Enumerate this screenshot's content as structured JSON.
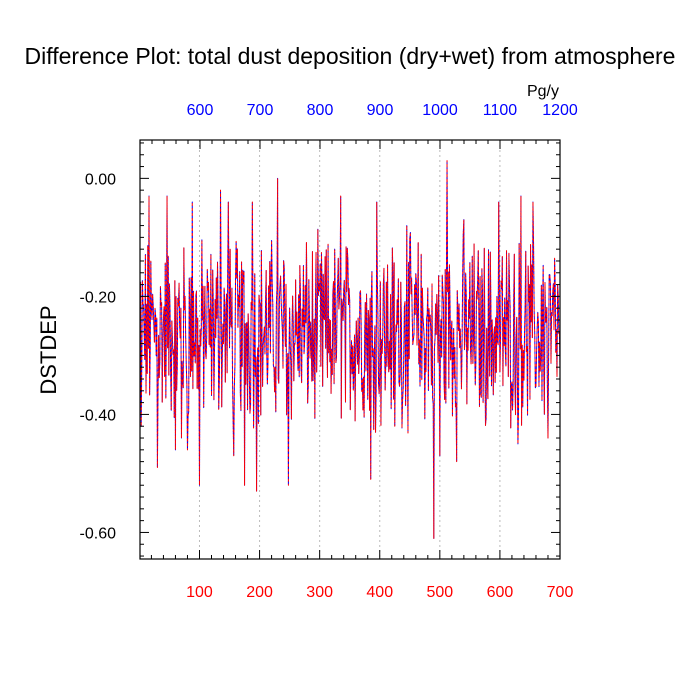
{
  "chart_data": {
    "type": "line",
    "title": "Difference Plot: total dust deposition (dry+wet) from atmosphere",
    "ylabel": "DSTDEP",
    "top_axis_unit": "Pg/y",
    "xlim": [
      1,
      700
    ],
    "ylim": [
      -0.645,
      0.065
    ],
    "top_xlim": [
      500,
      1200
    ],
    "bottom_ticks": [
      {
        "value": 100,
        "label": "100"
      },
      {
        "value": 200,
        "label": "200"
      },
      {
        "value": 300,
        "label": "300"
      },
      {
        "value": 400,
        "label": "400"
      },
      {
        "value": 500,
        "label": "500"
      },
      {
        "value": 600,
        "label": "600"
      },
      {
        "value": 700,
        "label": "700"
      }
    ],
    "top_ticks": [
      {
        "value": 600,
        "label": "600"
      },
      {
        "value": 700,
        "label": "700"
      },
      {
        "value": 800,
        "label": "800"
      },
      {
        "value": 900,
        "label": "900"
      },
      {
        "value": 1000,
        "label": "1000"
      },
      {
        "value": 1100,
        "label": "1100"
      },
      {
        "value": 1200,
        "label": "1200"
      }
    ],
    "y_ticks": [
      {
        "value": 0.0,
        "label": "0.00"
      },
      {
        "value": -0.2,
        "label": "-0.20"
      },
      {
        "value": -0.4,
        "label": "-0.40"
      },
      {
        "value": -0.6,
        "label": "-0.60"
      }
    ],
    "grid": "vertical dotted at major ticks",
    "series": [
      {
        "name": "DSTDEP difference",
        "style": "dashed",
        "colors": [
          "#0000ff",
          "#ff0000"
        ],
        "x_start": 1,
        "x_step": 1,
        "n_points": 700,
        "mean": -0.26,
        "range": [
          -0.61,
          0.03
        ],
        "key_points": [
          {
            "x": 1,
            "y": -0.4
          },
          {
            "x": 3,
            "y": -0.42
          },
          {
            "x": 16,
            "y": -0.03
          },
          {
            "x": 30,
            "y": -0.49
          },
          {
            "x": 46,
            "y": -0.03
          },
          {
            "x": 60,
            "y": -0.46
          },
          {
            "x": 70,
            "y": -0.44
          },
          {
            "x": 80,
            "y": -0.46
          },
          {
            "x": 88,
            "y": -0.04
          },
          {
            "x": 100,
            "y": -0.52
          },
          {
            "x": 135,
            "y": -0.02
          },
          {
            "x": 148,
            "y": -0.04
          },
          {
            "x": 157,
            "y": -0.47
          },
          {
            "x": 175,
            "y": -0.52
          },
          {
            "x": 188,
            "y": -0.04
          },
          {
            "x": 195,
            "y": -0.53
          },
          {
            "x": 230,
            "y": 0.0
          },
          {
            "x": 248,
            "y": -0.52
          },
          {
            "x": 290,
            "y": -0.3
          },
          {
            "x": 335,
            "y": -0.03
          },
          {
            "x": 385,
            "y": -0.51
          },
          {
            "x": 395,
            "y": -0.04
          },
          {
            "x": 425,
            "y": -0.42
          },
          {
            "x": 445,
            "y": -0.08
          },
          {
            "x": 490,
            "y": -0.61
          },
          {
            "x": 500,
            "y": -0.47
          },
          {
            "x": 512,
            "y": 0.03
          },
          {
            "x": 528,
            "y": -0.48
          },
          {
            "x": 540,
            "y": -0.07
          },
          {
            "x": 598,
            "y": -0.04
          },
          {
            "x": 630,
            "y": -0.45
          },
          {
            "x": 635,
            "y": -0.03
          },
          {
            "x": 655,
            "y": -0.04
          },
          {
            "x": 680,
            "y": -0.44
          },
          {
            "x": 700,
            "y": -0.32
          }
        ]
      }
    ]
  }
}
